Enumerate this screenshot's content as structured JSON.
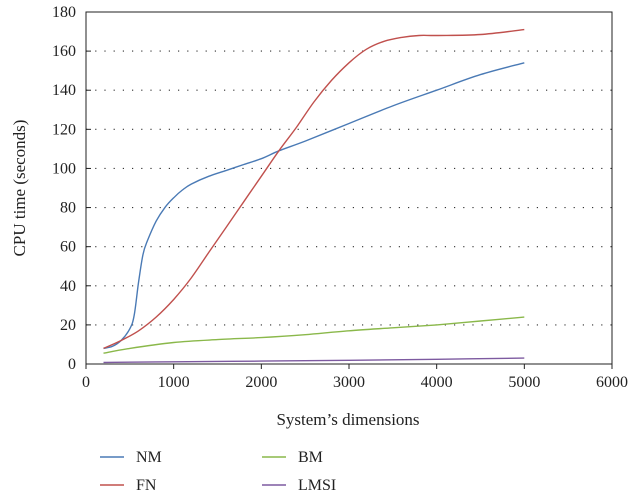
{
  "chart_data": {
    "type": "line",
    "title": "",
    "xlabel": "System’s dimensions",
    "ylabel": "CPU time (seconds)",
    "xlim": [
      0,
      6000
    ],
    "ylim": [
      0,
      180
    ],
    "xticks": [
      0,
      1000,
      2000,
      3000,
      4000,
      5000,
      6000
    ],
    "yticks": [
      0,
      20,
      40,
      60,
      80,
      100,
      120,
      140,
      160,
      180
    ],
    "grid": "horizontal dotted",
    "legend_position": "bottom",
    "series": [
      {
        "name": "NM",
        "color": "#4a7ab5",
        "x": [
          200,
          300,
          400,
          500,
          550,
          600,
          650,
          700,
          800,
          900,
          1000,
          1100,
          1200,
          1400,
          1600,
          1800,
          2000,
          2200,
          2500,
          3000,
          3500,
          4000,
          4500,
          5000
        ],
        "y": [
          8,
          9,
          12,
          18,
          25,
          42,
          56,
          63,
          73,
          80,
          85,
          89,
          92,
          96,
          99,
          102,
          105,
          109,
          114,
          123,
          132,
          140,
          148,
          154
        ]
      },
      {
        "name": "FN",
        "color": "#c0504d",
        "x": [
          200,
          400,
          600,
          800,
          1000,
          1200,
          1400,
          1600,
          1800,
          2000,
          2200,
          2400,
          2600,
          2800,
          3000,
          3200,
          3400,
          3600,
          3800,
          4000,
          4500,
          5000
        ],
        "y": [
          8,
          12,
          17,
          24,
          33,
          44,
          57,
          70,
          83,
          96,
          109,
          121,
          134,
          145,
          154,
          161,
          165,
          167,
          168,
          168,
          168.5,
          171
        ]
      },
      {
        "name": "BM",
        "color": "#8ab84a",
        "x": [
          200,
          500,
          1000,
          1500,
          2000,
          2500,
          3000,
          3500,
          4000,
          4500,
          5000
        ],
        "y": [
          5.5,
          8,
          11,
          12.5,
          13.5,
          15,
          17,
          18.5,
          20,
          22,
          24
        ]
      },
      {
        "name": "LMSI",
        "color": "#7d5aa0",
        "x": [
          200,
          1000,
          2000,
          3000,
          4000,
          5000
        ],
        "y": [
          0.8,
          1.1,
          1.5,
          1.9,
          2.4,
          3
        ]
      }
    ]
  }
}
